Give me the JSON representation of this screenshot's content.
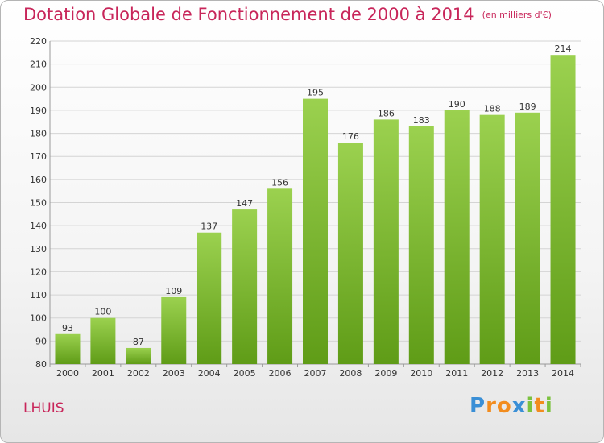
{
  "header": {
    "title": "Dotation Globale de Fonctionnement de 2000 à 2014",
    "unit": "(en milliers d'€)"
  },
  "footer": {
    "commune": "LHUIS",
    "logo": "Proxiti",
    "logo_letters": [
      {
        "ch": "P",
        "color": "#3a8fd6"
      },
      {
        "ch": "r",
        "color": "#f28c1e"
      },
      {
        "ch": "o",
        "color": "#f28c1e"
      },
      {
        "ch": "x",
        "color": "#3a8fd6"
      },
      {
        "ch": "i",
        "color": "#7bc23f"
      },
      {
        "ch": "t",
        "color": "#f28c1e"
      },
      {
        "ch": "i",
        "color": "#7bc23f"
      }
    ]
  },
  "colors": {
    "title": "#c8265a",
    "bar_top": "#9bd14f",
    "bar_bottom": "#5f9c17",
    "grid": "#d4d4d4"
  },
  "chart_data": {
    "type": "bar",
    "title": "Dotation Globale de Fonctionnement de 2000 à 2014",
    "xlabel": "",
    "ylabel": "",
    "categories": [
      "2000",
      "2001",
      "2002",
      "2003",
      "2004",
      "2005",
      "2006",
      "2007",
      "2008",
      "2009",
      "2010",
      "2011",
      "2012",
      "2013",
      "2014"
    ],
    "values": [
      93,
      100,
      87,
      109,
      137,
      147,
      156,
      195,
      176,
      186,
      183,
      190,
      188,
      189,
      214
    ],
    "ylim": [
      80,
      220
    ],
    "yticks": [
      80,
      90,
      100,
      110,
      120,
      130,
      140,
      150,
      160,
      170,
      180,
      190,
      200,
      210,
      220
    ],
    "grid": true,
    "legend": "none"
  }
}
